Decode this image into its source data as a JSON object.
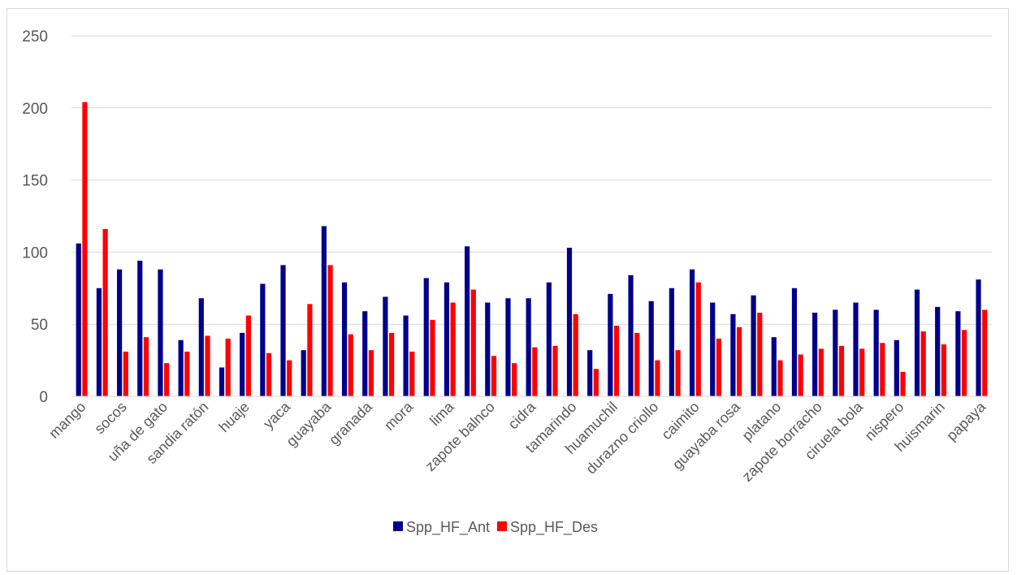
{
  "chart_data": {
    "type": "bar",
    "title": "",
    "xlabel": "",
    "ylabel": "",
    "ylim": [
      0,
      250
    ],
    "yticks": [
      0,
      50,
      100,
      150,
      200,
      250
    ],
    "grid": true,
    "legend_position": "bottom",
    "categories": [
      "mango",
      "",
      "socos",
      "",
      "uña de gato",
      "",
      "sandia ratón",
      "",
      "huaje",
      "",
      "yaca",
      "",
      "guayaba",
      "",
      "granada",
      "",
      "mora",
      "",
      "lima",
      "",
      "zapote balnco",
      "",
      "cidra",
      "",
      "tamarindo",
      "",
      "huamuchil",
      "",
      "durazno criollo",
      "",
      "caimito",
      "",
      "guayaba rosa",
      "",
      "platano",
      "",
      "zapote borracho",
      "",
      "ciruela bola",
      "",
      "nispero",
      "",
      "huismarin",
      "",
      "papaya"
    ],
    "series": [
      {
        "name": "Spp_HF_Ant",
        "color": "#00008b",
        "values": [
          106,
          75,
          88,
          94,
          88,
          39,
          68,
          20,
          44,
          78,
          91,
          32,
          118,
          79,
          59,
          69,
          56,
          82,
          79,
          104,
          65,
          68,
          68,
          79,
          103,
          32,
          71,
          84,
          66,
          75,
          88,
          65,
          57,
          70,
          41,
          75,
          58,
          60,
          65,
          60,
          39,
          74,
          62,
          59,
          81
        ]
      },
      {
        "name": "Spp_HF_Des",
        "color": "#ff0000",
        "values": [
          204,
          116,
          31,
          41,
          23,
          31,
          42,
          40,
          56,
          30,
          25,
          64,
          91,
          43,
          32,
          44,
          31,
          53,
          65,
          74,
          28,
          23,
          34,
          35,
          57,
          19,
          49,
          44,
          25,
          32,
          79,
          40,
          48,
          58,
          25,
          29,
          33,
          35,
          33,
          37,
          17,
          45,
          36,
          46,
          60
        ]
      }
    ]
  }
}
